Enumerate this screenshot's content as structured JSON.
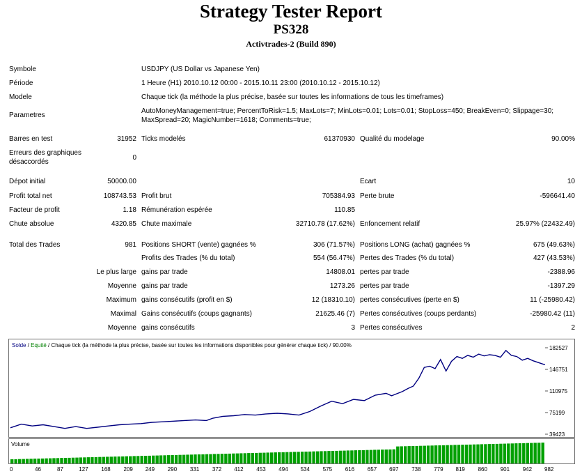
{
  "header": {
    "title": "Strategy Tester Report",
    "subtitle": "PS328",
    "broker": "Activtrades-2 (Build 890)"
  },
  "info": {
    "symbol_label": "Symbole",
    "symbol_value": "USDJPY (US Dollar vs Japanese Yen)",
    "period_label": "Période",
    "period_value": "1 Heure (H1) 2010.10.12 00:00 - 2015.10.11 23:00 (2010.10.12 - 2015.10.12)",
    "model_label": "Modele",
    "model_value": "Chaque tick (la méthode la plus précise, basée sur toutes les informations de tous les timeframes)",
    "params_label": "Parametres",
    "params_value": "AutoMoneyManagement=true; PercentToRisk=1.5; MaxLots=7; MinLots=0.01; Lots=0.01; StopLoss=450; BreakEven=0; Slippage=30; MaxSpread=20; MagicNumber=1618; Comments=true;"
  },
  "stats": {
    "bars_label": "Barres en test",
    "bars_value": "31952",
    "ticks_label": "Ticks modelés",
    "ticks_value": "61370930",
    "quality_label": "Qualité du modelage",
    "quality_value": "90.00%",
    "mismatch_label": "Erreurs des graphiques désaccordés",
    "mismatch_value": "0",
    "deposit_label": "Dépot initial",
    "deposit_value": "50000.00",
    "spread_label": "Ecart",
    "spread_value": "10",
    "netprofit_label": "Profit total net",
    "netprofit_value": "108743.53",
    "grossprofit_label": "Profit brut",
    "grossprofit_value": "705384.93",
    "grossloss_label": "Perte brute",
    "grossloss_value": "-596641.40",
    "pf_label": "Facteur de profit",
    "pf_value": "1.18",
    "payoff_label": "Rémunération espérée",
    "payoff_value": "110.85",
    "absdd_label": "Chute absolue",
    "absdd_value": "4320.85",
    "maxdd_label": "Chute maximale",
    "maxdd_value": "32710.78 (17.62%)",
    "reldd_label": "Enfoncement relatif",
    "reldd_value": "25.97% (22432.49)",
    "trades_label": "Total des Trades",
    "trades_value": "981",
    "short_label": "Positions SHORT (vente) gagnées %",
    "short_value": "306 (71.57%)",
    "long_label": "Positions LONG (achat) gagnées %",
    "long_value": "675 (49.63%)",
    "profittrades_label": "Profits des Trades (% du total)",
    "profittrades_value": "554 (56.47%)",
    "losstrades_label": "Pertes des Trades (% du total)",
    "losstrades_value": "427 (43.53%)",
    "largest_label": "Le plus large",
    "largest_gain_label": "gains par trade",
    "largest_gain_value": "14808.01",
    "largest_loss_label": "pertes par trade",
    "largest_loss_value": "-2388.96",
    "avg_label": "Moyenne",
    "avg_gain_label": "gains par trade",
    "avg_gain_value": "1273.26",
    "avg_loss_label": "pertes par trade",
    "avg_loss_value": "-1397.29",
    "max_label": "Maximum",
    "max_gain_label": "gains consécutifs (profit en $)",
    "max_gain_value": "12 (18310.10)",
    "max_loss_label": "pertes consécutives (perte en $)",
    "max_loss_value": "11 (-25980.42)",
    "maximal_label": "Maximal",
    "maximal_gain_label": "Gains consécutifs (coups gagnants)",
    "maximal_gain_value": "21625.46 (7)",
    "maximal_loss_label": "Pertes consécutives (coups perdants)",
    "maximal_loss_value": "-25980.42 (11)",
    "avg2_label": "Moyenne",
    "avg2_gain_label": "gains consécutifs",
    "avg2_gain_value": "3",
    "avg2_loss_label": "Pertes consécutives",
    "avg2_loss_value": "2"
  },
  "chart_data": {
    "type": "line",
    "legend_solde": "Solde",
    "legend_sep": " / ",
    "legend_equite": "Equité",
    "legend_rest": " / Chaque tick (la méthode la plus précise, basée sur toutes les informations disponibles pour générer chaque tick) / 90.00%",
    "volume_label": "Volume",
    "y_ticks": [
      "182527",
      "146751",
      "110975",
      "75199",
      "39423"
    ],
    "x_ticks": [
      "0",
      "46",
      "87",
      "127",
      "168",
      "209",
      "249",
      "290",
      "331",
      "372",
      "412",
      "453",
      "494",
      "534",
      "575",
      "616",
      "657",
      "697",
      "738",
      "779",
      "819",
      "860",
      "901",
      "942",
      "982"
    ],
    "xlim": [
      0,
      982
    ],
    "ylim": [
      39423,
      182527
    ],
    "series": [
      {
        "x": [
          0,
          20,
          40,
          60,
          80,
          100,
          120,
          140,
          160,
          180,
          200,
          220,
          240,
          260,
          280,
          300,
          320,
          340,
          360,
          372,
          390,
          410,
          430,
          450,
          470,
          490,
          510,
          530,
          550,
          570,
          590,
          610,
          630,
          650,
          670,
          690,
          700,
          720,
          730,
          740,
          750,
          760,
          770,
          780,
          790,
          800,
          810,
          820,
          830,
          840,
          850,
          860,
          870,
          880,
          890,
          900,
          910,
          920,
          930,
          940,
          950,
          960,
          970,
          980,
          982
        ],
        "y": [
          50000,
          56000,
          53000,
          55000,
          52000,
          49000,
          52000,
          49000,
          51000,
          53000,
          55000,
          56000,
          57000,
          59000,
          60000,
          61000,
          62000,
          63000,
          62000,
          66000,
          69000,
          70000,
          72000,
          71000,
          73000,
          74000,
          73000,
          71000,
          77000,
          86000,
          94000,
          90000,
          97000,
          95000,
          104000,
          107000,
          103000,
          110000,
          115000,
          119000,
          132000,
          150000,
          152000,
          148000,
          163000,
          144000,
          160000,
          168000,
          165000,
          170000,
          167000,
          172000,
          169000,
          171000,
          170000,
          167000,
          178000,
          170000,
          168000,
          162000,
          165000,
          161000,
          158000,
          155000,
          155000
        ]
      }
    ],
    "colors": {
      "balance": "#000080",
      "equity": "#008000",
      "volume": "#00a000"
    }
  }
}
